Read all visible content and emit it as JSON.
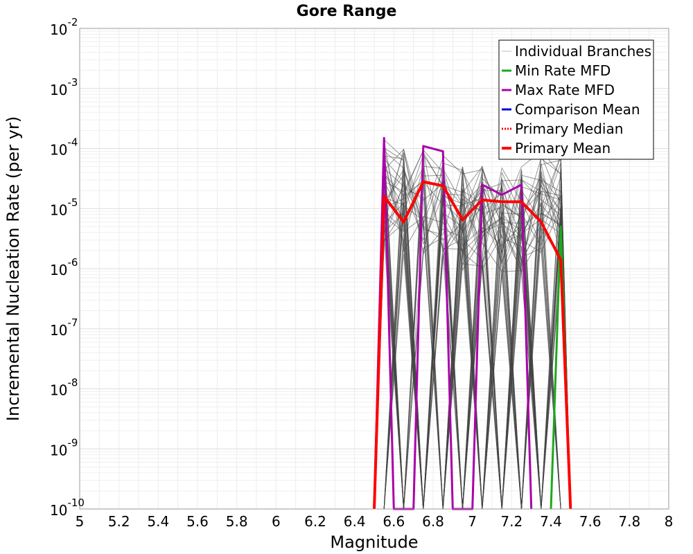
{
  "chart_data": {
    "type": "line",
    "title": "Gore Range",
    "xlabel": "Magnitude",
    "ylabel": "Incremental Nucleation Rate (per yr)",
    "xlim": [
      5,
      8
    ],
    "ylim": [
      1e-10,
      0.01
    ],
    "yscale": "log",
    "grid": true,
    "x_ticks": [
      "5",
      "5.2",
      "5.4",
      "5.6",
      "5.8",
      "6",
      "6.2",
      "6.4",
      "6.6",
      "6.8",
      "7",
      "7.2",
      "7.4",
      "7.6",
      "7.8",
      "8"
    ],
    "y_ticks": [
      {
        "base": "10",
        "exp": "-10"
      },
      {
        "base": "10",
        "exp": "-9"
      },
      {
        "base": "10",
        "exp": "-8"
      },
      {
        "base": "10",
        "exp": "-7"
      },
      {
        "base": "10",
        "exp": "-6"
      },
      {
        "base": "10",
        "exp": "-5"
      },
      {
        "base": "10",
        "exp": "-4"
      },
      {
        "base": "10",
        "exp": "-3"
      },
      {
        "base": "10",
        "exp": "-2"
      }
    ],
    "legend": {
      "position": "top-right",
      "entries": [
        {
          "name": "Individual Branches",
          "color": "#bdbdbd",
          "style": "solid-thin"
        },
        {
          "name": "Min Rate MFD",
          "color": "#1aaa1a",
          "style": "solid"
        },
        {
          "name": "Max Rate MFD",
          "color": "#aa00aa",
          "style": "solid"
        },
        {
          "name": "Comparison Mean",
          "color": "#0000dd",
          "style": "solid"
        },
        {
          "name": "Primary Median",
          "color": "#ff0000",
          "style": "dotted"
        },
        {
          "name": "Primary Mean",
          "color": "#ff0000",
          "style": "solid-thick"
        }
      ]
    },
    "branch_magnitudes": [
      6.55,
      6.65,
      6.75,
      6.85,
      6.95,
      7.05,
      7.15,
      7.25,
      7.35,
      7.45
    ],
    "branch_range": {
      "min": [
        1e-10,
        1e-10,
        1e-10,
        1e-10,
        1e-10,
        1e-10,
        1e-10,
        1e-10,
        1e-10,
        1e-10
      ],
      "max": [
        0.00015,
        0.00011,
        0.00011,
        9e-05,
        5.5e-05,
        5.5e-05,
        5e-05,
        5e-05,
        0.0001,
        8e-05
      ]
    },
    "series": [
      {
        "name": "Min Rate MFD",
        "color": "#1aaa1a",
        "x": [
          7.4,
          7.45,
          7.5
        ],
        "y": [
          1e-10,
          5e-06,
          1e-10
        ]
      },
      {
        "name": "Max Rate MFD",
        "color": "#aa00aa",
        "x": [
          6.5,
          6.55,
          6.6,
          6.7,
          6.75,
          6.85,
          6.9,
          7.0,
          7.05,
          7.15,
          7.25,
          7.3
        ],
        "y": [
          1e-10,
          0.00015,
          1e-10,
          1e-10,
          0.00011,
          9e-05,
          1e-10,
          1e-10,
          2.5e-05,
          1.7e-05,
          2.5e-05,
          1e-10
        ]
      },
      {
        "name": "Primary Mean",
        "color": "#ff0000",
        "x": [
          6.5,
          6.55,
          6.65,
          6.75,
          6.85,
          6.95,
          7.05,
          7.15,
          7.25,
          7.35,
          7.45,
          7.5
        ],
        "y": [
          1e-10,
          1.6e-05,
          6e-06,
          2.8e-05,
          2.4e-05,
          6.5e-06,
          1.4e-05,
          1.3e-05,
          1.3e-05,
          6e-06,
          1.4e-06,
          1e-10
        ]
      }
    ]
  }
}
